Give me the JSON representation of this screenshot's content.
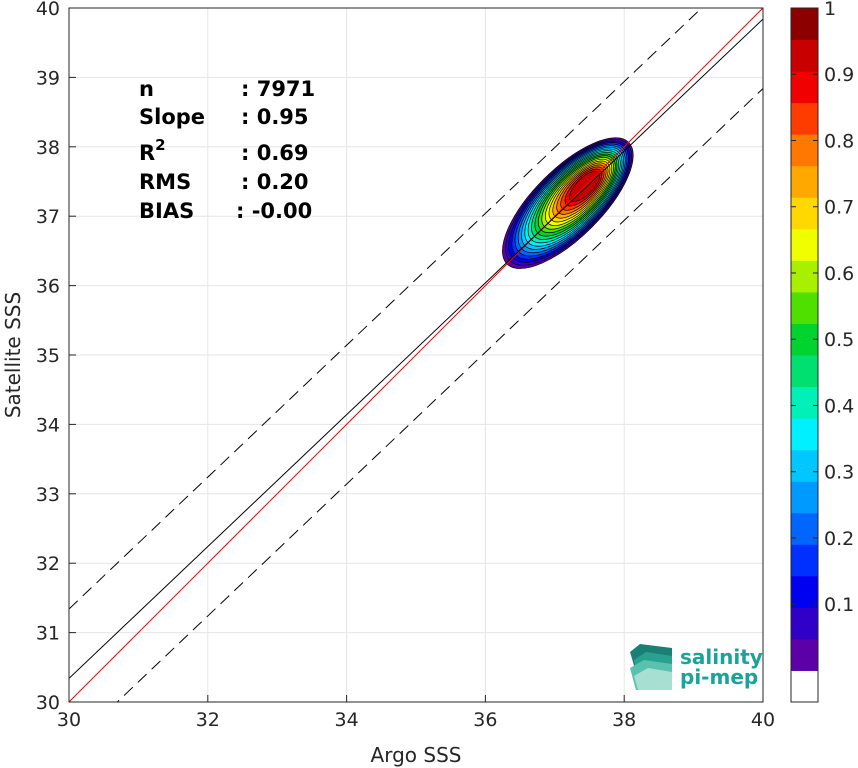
{
  "chart_data": {
    "type": "scatter",
    "subtype": "density-contour",
    "title": "",
    "xlabel": "Argo SSS",
    "ylabel": "Satellite SSS",
    "xlim": [
      30,
      40
    ],
    "ylim": [
      30,
      40
    ],
    "x_ticks": [
      "30",
      "32",
      "34",
      "36",
      "38",
      "40"
    ],
    "y_ticks": [
      "30",
      "31",
      "32",
      "33",
      "34",
      "35",
      "36",
      "37",
      "38",
      "39",
      "40"
    ],
    "grid": true,
    "stats": [
      {
        "label": "n",
        "value": ": 7971"
      },
      {
        "label": "Slope",
        "value": ": 0.95"
      },
      {
        "label": "R",
        "sup": "2",
        "value": ": 0.69"
      },
      {
        "label": "RMS",
        "value": ": 0.20"
      },
      {
        "label": "BIAS",
        "value": ": -0.00"
      }
    ],
    "lines": [
      {
        "kind": "identity",
        "color": "#ff0000",
        "style": "solid",
        "intercept": 0,
        "slope": 1
      },
      {
        "kind": "regression",
        "color": "#000000",
        "style": "solid",
        "intercept": 1.84,
        "slope": 0.95
      },
      {
        "kind": "regression-upper",
        "color": "#000000",
        "style": "dashed",
        "intercept": 2.84,
        "slope": 0.95
      },
      {
        "kind": "regression-lower",
        "color": "#000000",
        "style": "dashed",
        "intercept": 0.84,
        "slope": 0.95
      }
    ],
    "density_center": {
      "x": 37.45,
      "y": 37.45
    },
    "colorbar": {
      "ticks": [
        "0.1",
        "0.2",
        "0.3",
        "0.4",
        "0.5",
        "0.6",
        "0.7",
        "0.8",
        "0.9",
        "1"
      ],
      "levels": [
        0,
        0.05,
        0.1,
        0.15,
        0.2,
        0.25,
        0.3,
        0.35,
        0.4,
        0.45,
        0.5,
        0.55,
        0.6,
        0.65,
        0.7,
        0.75,
        0.8,
        0.85,
        0.9,
        0.95,
        1
      ],
      "colors": [
        "#ffffff",
        "#5c00a8",
        "#3000c8",
        "#0000f0",
        "#0030ff",
        "#0066ff",
        "#009aff",
        "#00c8ff",
        "#00f0ff",
        "#00f0b8",
        "#00e070",
        "#00d230",
        "#50e000",
        "#a8f000",
        "#f0ff00",
        "#ffd800",
        "#ffa800",
        "#ff7800",
        "#ff3c00",
        "#f00000",
        "#c80000",
        "#8c0000"
      ]
    }
  },
  "logo": {
    "line1": "salinity",
    "line2": "pi-mep"
  }
}
